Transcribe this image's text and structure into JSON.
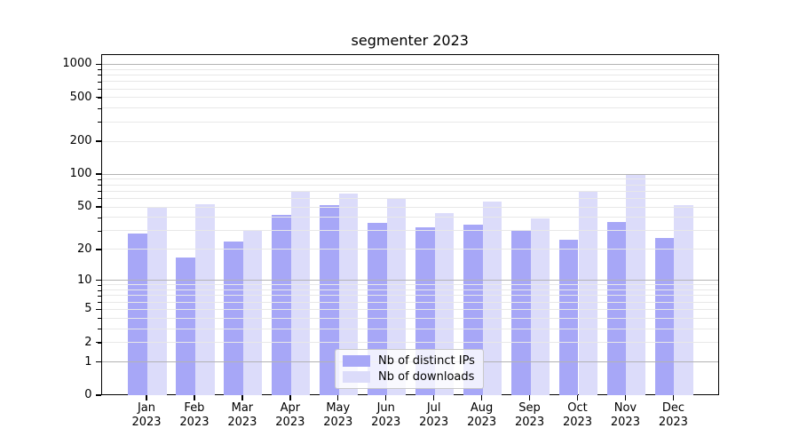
{
  "title": "segmenter 2023",
  "colors": {
    "bar_distinct_ips": "#a7a7f7",
    "bar_downloads": "#dcdcfa",
    "grid_major": "#b3b3b3",
    "grid_minor": "#e8e8e8",
    "spine": "#000000",
    "legend_border": "#c9c9c9",
    "text": "#000000"
  },
  "chart_data": {
    "type": "bar",
    "title": "segmenter 2023",
    "xlabel": "",
    "ylabel": "",
    "yscale": "log1p",
    "grid": true,
    "legend_position": "lower center",
    "categories": [
      "Jan 2023",
      "Feb 2023",
      "Mar 2023",
      "Apr 2023",
      "May 2023",
      "Jun 2023",
      "Jul 2023",
      "Aug 2023",
      "Sep 2023",
      "Oct 2023",
      "Nov 2023",
      "Dec 2023"
    ],
    "series": [
      {
        "name": "Nb of distinct IPs",
        "color": "#a7a7f7",
        "values": [
          29,
          17,
          24,
          43,
          53,
          36,
          33,
          35,
          31,
          25,
          37,
          26
        ]
      },
      {
        "name": "Nb of downloads",
        "color": "#dcdcfa",
        "values": [
          51,
          54,
          31,
          70,
          68,
          60,
          45,
          57,
          40,
          70,
          100,
          53
        ]
      }
    ],
    "yticks": [
      0,
      1,
      2,
      5,
      10,
      20,
      50,
      100,
      200,
      500,
      1000
    ],
    "ylim": [
      0,
      1236
    ]
  }
}
